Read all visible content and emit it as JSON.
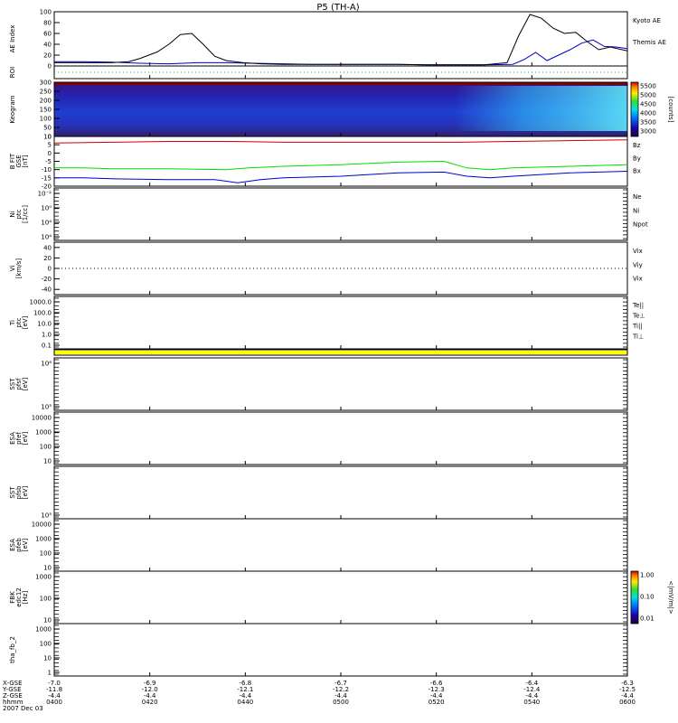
{
  "chart_data": {
    "type": "line",
    "title": "P5 (TH-A)",
    "panels": [
      {
        "id": "ae",
        "label": "AE Index",
        "ylim": [
          0,
          100
        ],
        "ticks": [
          "0",
          "20",
          "40",
          "60",
          "80",
          "100"
        ],
        "legend": [
          {
            "text": "Kyoto AE",
            "color": "#0000cc"
          },
          {
            "text": "Themis AE",
            "color": "#000000"
          }
        ],
        "series": [
          {
            "name": "Kyoto AE",
            "color": "#0000cc",
            "x": [
              0,
              0.05,
              0.1,
              0.15,
              0.2,
              0.25,
              0.3,
              0.35,
              0.4,
              0.45,
              0.5,
              0.55,
              0.6,
              0.65,
              0.7,
              0.75,
              0.8,
              0.82,
              0.84,
              0.86,
              0.88,
              0.9,
              0.92,
              0.94,
              0.96,
              0.98,
              1.0
            ],
            "y": [
              8,
              8,
              7,
              5,
              4,
              6,
              6,
              5,
              4,
              3,
              3,
              3,
              3,
              2,
              2,
              2,
              3,
              12,
              25,
              10,
              20,
              30,
              42,
              48,
              36,
              35,
              32
            ]
          },
          {
            "name": "Themis AE",
            "color": "#000000",
            "x": [
              0,
              0.05,
              0.1,
              0.13,
              0.15,
              0.18,
              0.2,
              0.22,
              0.24,
              0.26,
              0.28,
              0.3,
              0.33,
              0.36,
              0.4,
              0.45,
              0.5,
              0.55,
              0.6,
              0.65,
              0.7,
              0.75,
              0.79,
              0.81,
              0.83,
              0.85,
              0.87,
              0.89,
              0.91,
              0.93,
              0.95,
              0.97,
              1.0
            ],
            "y": [
              6,
              6,
              6,
              8,
              14,
              26,
              40,
              58,
              60,
              40,
              18,
              10,
              6,
              4,
              3,
              3,
              3,
              3,
              3,
              2,
              2,
              2,
              6,
              55,
              95,
              88,
              70,
              60,
              62,
              45,
              30,
              35,
              28
            ]
          }
        ]
      },
      {
        "id": "roi",
        "label": "ROI",
        "ylim": [
          0,
          1
        ],
        "ticks": [],
        "dotted_zero": true
      },
      {
        "id": "keogram",
        "label": "Keogram",
        "ylim": [
          0,
          300
        ],
        "ticks": [
          "0",
          "50",
          "100",
          "150",
          "200",
          "250",
          "300"
        ],
        "colorbar": {
          "label": "[counts]",
          "ticks": [
            "3000",
            "3500",
            "4000",
            "4500",
            "5000",
            "5500"
          ]
        }
      },
      {
        "id": "bfit",
        "label": "B FIT",
        "unit": "[nT]",
        "sub": "GSE",
        "ylim": [
          -20,
          10
        ],
        "ticks": [
          "-20",
          "-15",
          "-10",
          "-5",
          "0",
          "5",
          "10"
        ],
        "legend": [
          {
            "text": "Bz",
            "color": "#cc0000"
          },
          {
            "text": "By",
            "color": "#00cc00"
          },
          {
            "text": "Bx",
            "color": "#0000cc"
          }
        ],
        "series": [
          {
            "name": "Bz",
            "color": "#cc0000",
            "x": [
              0,
              0.1,
              0.2,
              0.3,
              0.4,
              0.5,
              0.6,
              0.7,
              0.8,
              0.9,
              1.0
            ],
            "y": [
              6,
              6.5,
              7,
              7,
              6.5,
              6.5,
              6.5,
              6.5,
              7,
              7.5,
              8
            ]
          },
          {
            "name": "By",
            "color": "#00dd00",
            "x": [
              0,
              0.05,
              0.1,
              0.2,
              0.3,
              0.34,
              0.4,
              0.5,
              0.6,
              0.68,
              0.72,
              0.76,
              0.8,
              0.9,
              1.0
            ],
            "y": [
              -9,
              -9,
              -9.5,
              -9.5,
              -10,
              -9,
              -8,
              -7,
              -5.5,
              -5,
              -9,
              -10,
              -9,
              -8,
              -7
            ]
          },
          {
            "name": "Bx",
            "color": "#0000cc",
            "x": [
              0,
              0.05,
              0.1,
              0.2,
              0.28,
              0.32,
              0.36,
              0.4,
              0.5,
              0.6,
              0.68,
              0.72,
              0.76,
              0.8,
              0.9,
              1.0
            ],
            "y": [
              -15,
              -15,
              -15.5,
              -16,
              -16,
              -18,
              -16,
              -15,
              -14,
              -12,
              -11.5,
              -14,
              -15,
              -14,
              -12,
              -11
            ]
          }
        ]
      },
      {
        "id": "ni",
        "label": "Ni",
        "unit": "[1/cc]",
        "sub": "ptc",
        "ylim": [
          0,
          1
        ],
        "ticks": [
          "10⁴",
          "10⁴",
          "10⁰",
          "10⁻²"
        ],
        "legend": [
          {
            "text": "Ne",
            "color": "#cc0000"
          },
          {
            "text": "Ni",
            "color": "#000000"
          },
          {
            "text": "Npot",
            "color": "#0000cc"
          }
        ]
      },
      {
        "id": "vi",
        "label": "Vi",
        "unit": "[km/s]",
        "ylim": [
          -50,
          50
        ],
        "ticks": [
          "-40",
          "-20",
          "0",
          "20",
          "40"
        ],
        "dotted_zero": true,
        "legend": [
          {
            "text": "Vix",
            "color": "#cc0000"
          },
          {
            "text": "Viy",
            "color": "#00cc00"
          },
          {
            "text": "Vix",
            "color": "#0000cc"
          }
        ]
      },
      {
        "id": "ti",
        "label": "Ti",
        "unit": "[eV]",
        "sub": "ptc",
        "ylim": [
          0,
          1
        ],
        "ticks": [
          "0.1",
          "1.0",
          "10.0",
          "100.0",
          "1000.0"
        ],
        "legend": [
          {
            "text": "Te||",
            "color": "#000000"
          },
          {
            "text": "Te⊥",
            "color": "#cc0000"
          },
          {
            "text": "Ti||",
            "color": "#00cc00"
          },
          {
            "text": "Ti⊥",
            "color": "#0000cc"
          }
        ]
      },
      {
        "id": "flag",
        "label": "",
        "ylim": [
          0,
          1
        ],
        "ticks": [],
        "bar_color": "#ffff00"
      },
      {
        "id": "sst1",
        "label": "SST",
        "unit": "[eV]",
        "sub": "pfsf",
        "ylim": [
          0,
          1
        ],
        "ticks": [
          "10⁵",
          "10⁶"
        ]
      },
      {
        "id": "esa1",
        "label": "ESA",
        "unit": "[eV]",
        "sub": "pfef",
        "ylim": [
          0,
          1
        ],
        "ticks": [
          "10",
          "100",
          "1000",
          "10000"
        ]
      },
      {
        "id": "sst2",
        "label": "SST",
        "unit": "[eV]",
        "sub": "pfsb",
        "ylim": [
          0,
          1
        ],
        "ticks": [
          "10⁵"
        ]
      },
      {
        "id": "esa2",
        "label": "ESA",
        "unit": "[eV]",
        "sub": "pfeb",
        "ylim": [
          0,
          1
        ],
        "ticks": [
          "10",
          "100",
          "1000",
          "10000"
        ]
      },
      {
        "id": "fbk",
        "label": "FBK",
        "unit": "[Hz]",
        "sub": "edc12",
        "ylim": [
          0,
          1
        ],
        "ticks": [
          "10",
          "100",
          "1000"
        ],
        "colorbar": {
          "label": "<|mV/m|>",
          "ticks": [
            "0.01",
            "0.10",
            "1.00"
          ]
        }
      },
      {
        "id": "fb2",
        "label": "tha_fb_2",
        "ylim": [
          0,
          1
        ],
        "ticks": [
          "1",
          "10",
          "100",
          "1000"
        ]
      }
    ],
    "xaxis": {
      "row_labels": [
        "X-GSE",
        "Y-GSE",
        "Z-GSE",
        "hhmm",
        "2007 Dec 03"
      ],
      "ticks": [
        {
          "x": "-7.0",
          "y": "-11.8",
          "z": "-4.4",
          "t": "0400"
        },
        {
          "x": "-6.9",
          "y": "-12.0",
          "z": "-4.4",
          "t": "0420"
        },
        {
          "x": "-6.8",
          "y": "-12.1",
          "z": "-4.4",
          "t": "0440"
        },
        {
          "x": "-6.7",
          "y": "-12.2",
          "z": "-4.4",
          "t": "0500"
        },
        {
          "x": "-6.6",
          "y": "-12.3",
          "z": "-4.4",
          "t": "0520"
        },
        {
          "x": "-6.4",
          "y": "-12.4",
          "z": "-4.4",
          "t": "0540"
        },
        {
          "x": "-6.3",
          "y": "-12.5",
          "z": "-4.4",
          "t": "0600"
        }
      ]
    }
  }
}
